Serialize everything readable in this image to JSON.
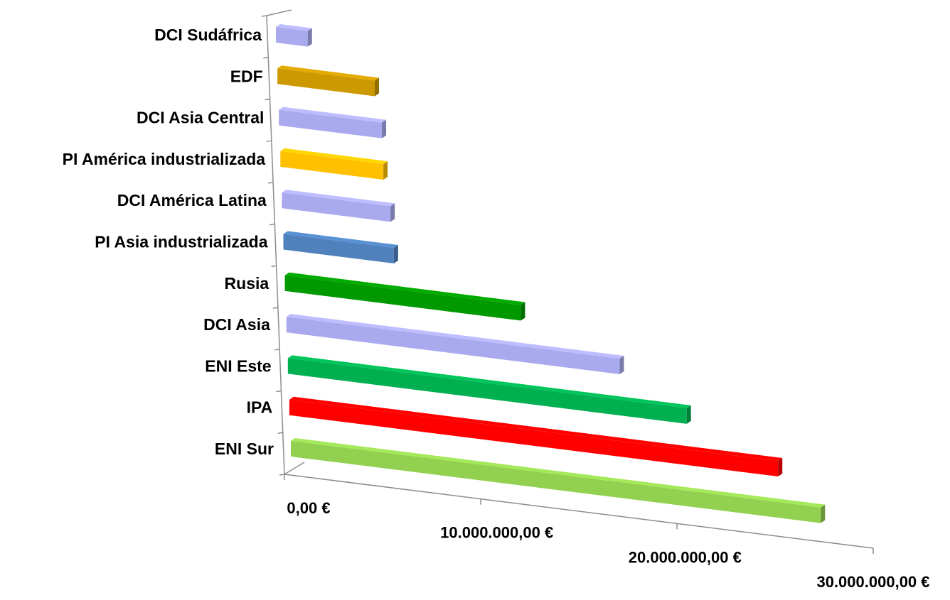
{
  "chart_data": {
    "type": "bar",
    "orientation": "horizontal",
    "three_d": true,
    "categories": [
      "DCI Sudáfrica",
      "EDF",
      "DCI Asia Central",
      "PI América industrializada",
      "DCI América Latina",
      "PI Asia industrializada",
      "Rusia",
      "DCI Asia",
      "ENI Este",
      "IPA",
      "ENI Sur"
    ],
    "values": [
      1700000,
      5200000,
      5500000,
      5500000,
      5800000,
      5900000,
      12600000,
      17800000,
      21300000,
      26100000,
      28300000
    ],
    "colors": [
      "#a9a9ee",
      "#cc9900",
      "#a9a9ee",
      "#ffc000",
      "#a9a9ee",
      "#4f81bd",
      "#009900",
      "#a9a9ee",
      "#00b050",
      "#ff0000",
      "#92d050"
    ],
    "x_ticks": [
      "0,00 €",
      "10.000.000,00 €",
      "20.000.000,00 €",
      "30.000.000,00 €"
    ],
    "x_tick_values": [
      0,
      10000000,
      20000000,
      30000000
    ],
    "xlim": [
      0,
      30000000
    ],
    "title": "",
    "xlabel": "",
    "ylabel": "",
    "grid": false,
    "legend": "none"
  }
}
